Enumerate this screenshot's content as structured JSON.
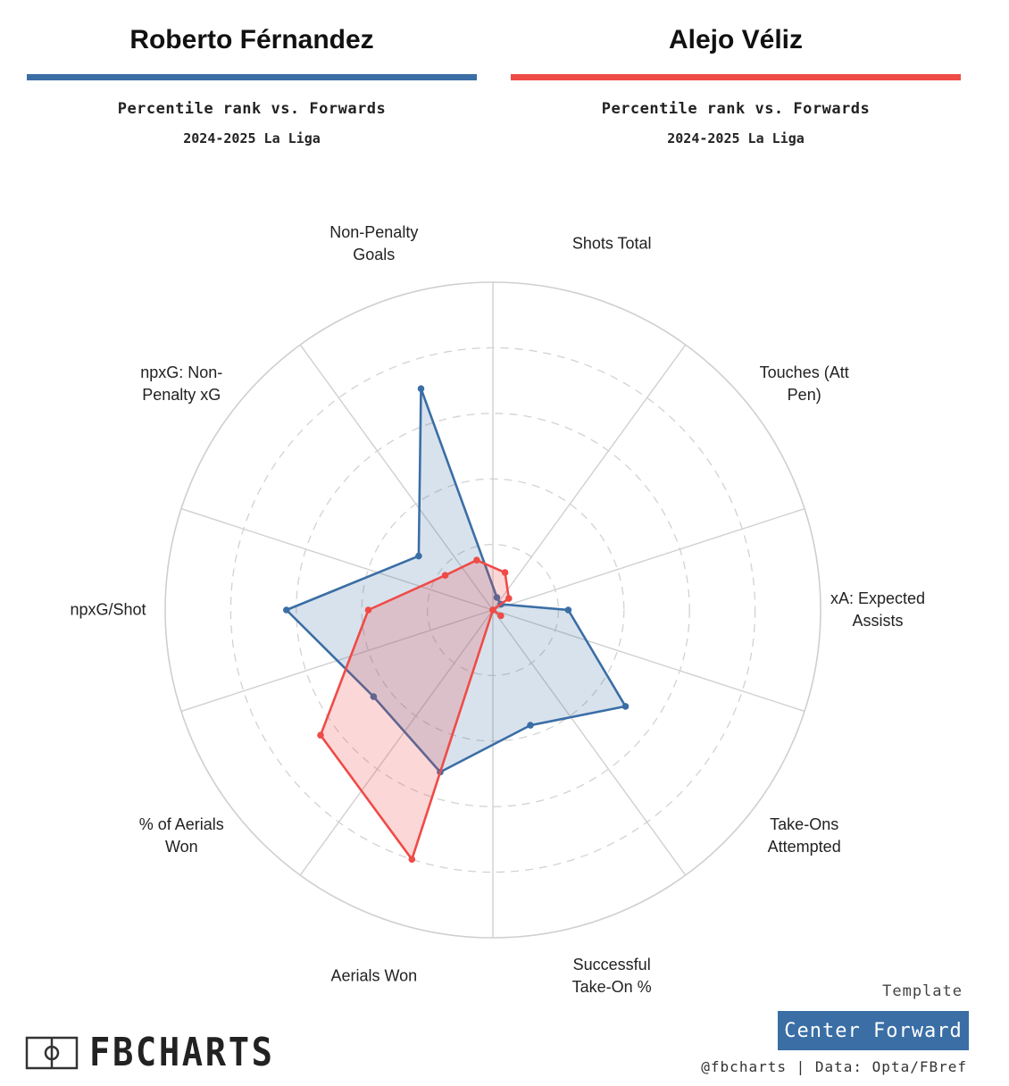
{
  "players": [
    {
      "name": "Roberto Férnandez",
      "subtitle": "Percentile rank vs. Forwards",
      "season": "2024-2025 La Liga",
      "color": "#3a6ea5",
      "fill": "rgba(58,110,165,0.20)"
    },
    {
      "name": "Alejo Véliz",
      "subtitle": "Percentile rank vs. Forwards",
      "season": "2024-2025 La Liga",
      "color": "#ef4b47",
      "fill": "rgba(239,75,71,0.22)"
    }
  ],
  "chart_data": {
    "type": "radar",
    "axes": [
      "Shots Total",
      "Touches (Att Pen)",
      "xA: Expected Assists",
      "Take-Ons Attempted",
      "Successful Take-On %",
      "Aerials Won",
      "% of Aerials Won",
      "npxG/Shot",
      "npxG: Non-Penalty xG",
      "Non-Penalty Goals"
    ],
    "range": [
      0,
      100
    ],
    "grid": true,
    "series": [
      {
        "name": "Roberto Férnandez",
        "values": [
          4,
          3,
          23,
          50,
          37,
          52,
          45,
          63,
          28,
          71
        ]
      },
      {
        "name": "Alejo Véliz",
        "values": [
          12,
          6,
          0,
          3,
          0,
          80,
          65,
          38,
          18,
          16
        ]
      }
    ]
  },
  "template": {
    "label": "Template",
    "value": "Center Forward"
  },
  "logo": {
    "text": "FBCHARTS"
  },
  "credits": "@fbcharts | Data: Opta/FBref"
}
